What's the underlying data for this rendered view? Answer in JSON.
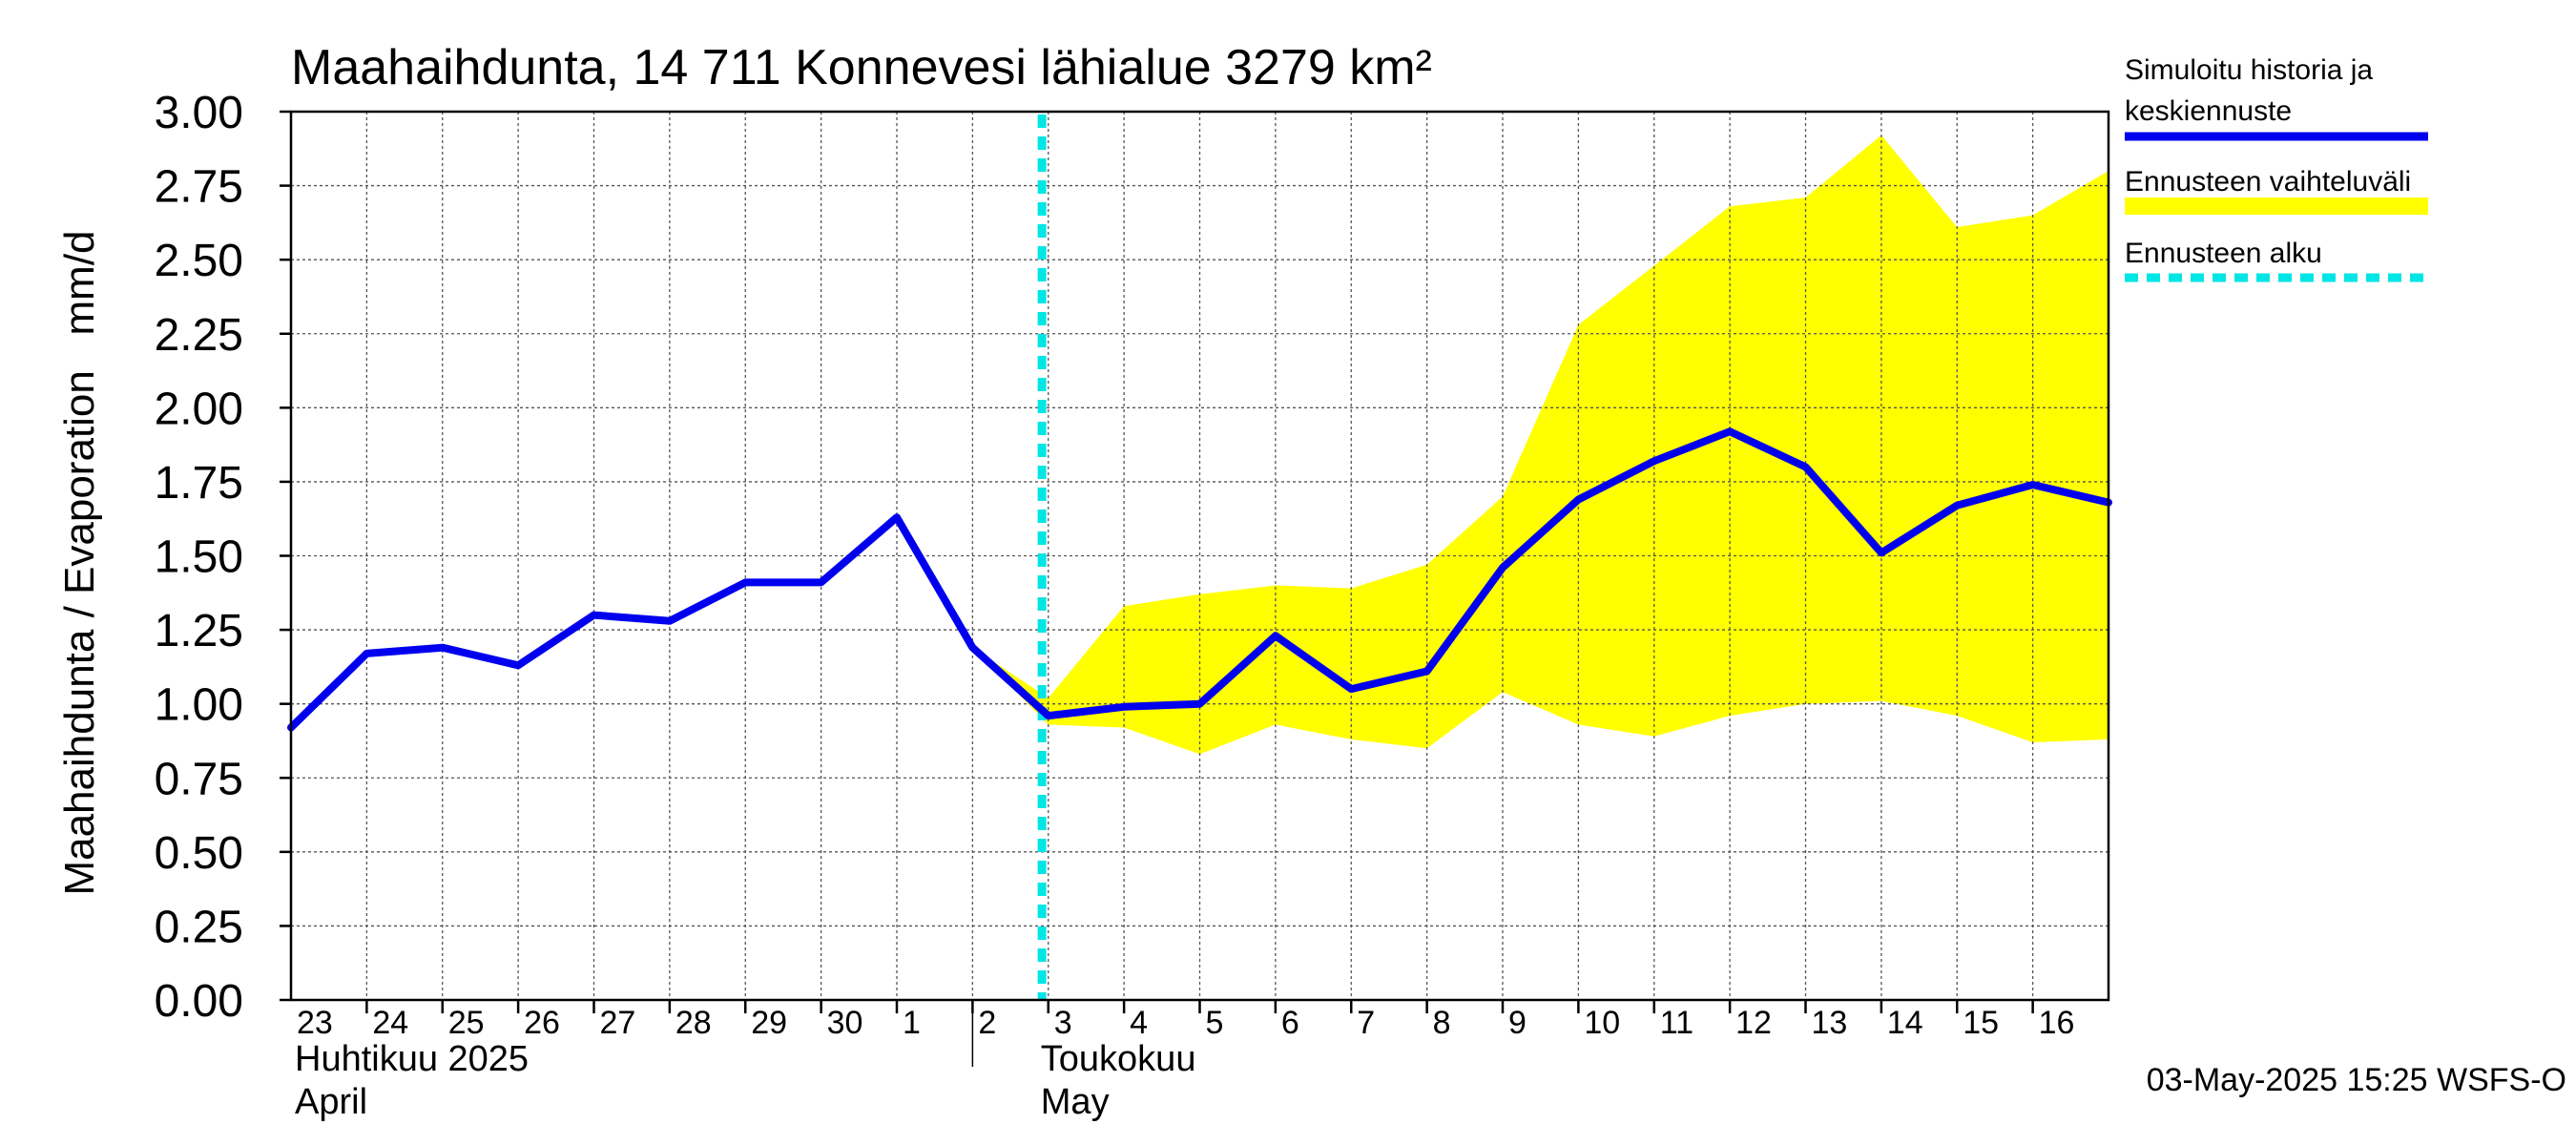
{
  "chart_data": {
    "type": "line",
    "title": "Maahaihdunta, 14 711 Konnevesi lähialue 3279 km²",
    "ylabel": "Maahaihdunta / Evaporation   mm/d",
    "ylim": [
      0,
      3
    ],
    "yticks": [
      "0.00",
      "0.25",
      "0.50",
      "0.75",
      "1.00",
      "1.25",
      "1.50",
      "1.75",
      "2.00",
      "2.25",
      "2.50",
      "2.75",
      "3.00"
    ],
    "grid": true,
    "x_days": [
      "23",
      "24",
      "25",
      "26",
      "27",
      "28",
      "29",
      "30",
      "1",
      "2",
      "3",
      "4",
      "5",
      "6",
      "7",
      "8",
      "9",
      "10",
      "11",
      "12",
      "13",
      "14",
      "15",
      "16"
    ],
    "x_start": "2025-04-23",
    "x_end": "2025-05-17",
    "months": [
      {
        "line1": "Huhtikuu  2025",
        "line2": "April",
        "start": "2025-04-23"
      },
      {
        "line1": "Toukokuu",
        "line2": "May",
        "start": "2025-05-02"
      }
    ],
    "forecast_start": "2025-05-02 22:00",
    "series": [
      {
        "name": "Simuloitu historia ja keskiennuste",
        "color": "#0000ee",
        "points": [
          [
            "2025-04-23",
            0.92
          ],
          [
            "2025-04-24",
            1.17
          ],
          [
            "2025-04-25",
            1.19
          ],
          [
            "2025-04-26",
            1.13
          ],
          [
            "2025-04-27",
            1.3
          ],
          [
            "2025-04-28",
            1.28
          ],
          [
            "2025-04-29",
            1.41
          ],
          [
            "2025-04-30",
            1.41
          ],
          [
            "2025-05-01",
            1.63
          ],
          [
            "2025-05-02",
            1.19
          ],
          [
            "2025-05-03",
            0.96
          ],
          [
            "2025-05-04",
            0.99
          ],
          [
            "2025-05-05",
            1.0
          ],
          [
            "2025-05-06",
            1.23
          ],
          [
            "2025-05-07",
            1.05
          ],
          [
            "2025-05-08",
            1.11
          ],
          [
            "2025-05-09",
            1.46
          ],
          [
            "2025-05-10",
            1.69
          ],
          [
            "2025-05-11",
            1.82
          ],
          [
            "2025-05-12",
            1.92
          ],
          [
            "2025-05-13",
            1.8
          ],
          [
            "2025-05-14",
            1.51
          ],
          [
            "2025-05-15",
            1.67
          ],
          [
            "2025-05-16",
            1.74
          ],
          [
            "2025-05-17",
            1.68
          ]
        ]
      }
    ],
    "band": {
      "name": "Ennusteen vaihteluväli",
      "color": "#ffff00",
      "points": [
        [
          "2025-05-02",
          1.19,
          1.19
        ],
        [
          "2025-05-03",
          0.93,
          1.02
        ],
        [
          "2025-05-04",
          0.92,
          1.33
        ],
        [
          "2025-05-05",
          0.83,
          1.37
        ],
        [
          "2025-05-06",
          0.93,
          1.4
        ],
        [
          "2025-05-07",
          0.88,
          1.39
        ],
        [
          "2025-05-08",
          0.85,
          1.47
        ],
        [
          "2025-05-09",
          1.04,
          1.7
        ],
        [
          "2025-05-10",
          0.93,
          2.28
        ],
        [
          "2025-05-11",
          0.89,
          2.48
        ],
        [
          "2025-05-12",
          0.96,
          2.68
        ],
        [
          "2025-05-13",
          1.0,
          2.71
        ],
        [
          "2025-05-14",
          1.01,
          2.92
        ],
        [
          "2025-05-15",
          0.96,
          2.61
        ],
        [
          "2025-05-16",
          0.87,
          2.65
        ],
        [
          "2025-05-17",
          0.88,
          2.8
        ]
      ]
    },
    "legend": [
      {
        "label_line1": "Simuloitu historia ja",
        "label_line2": "keskiennuste",
        "color": "#0000ee",
        "style": "solid"
      },
      {
        "label_line1": "Ennusteen vaihteluväli",
        "label_line2": "",
        "color": "#ffff00",
        "style": "solid"
      },
      {
        "label_line1": "Ennusteen alku",
        "label_line2": "",
        "color": "#00e5e5",
        "style": "dashed"
      }
    ],
    "legend_position": "right",
    "footer": "03-May-2025 15:25 WSFS-O"
  }
}
